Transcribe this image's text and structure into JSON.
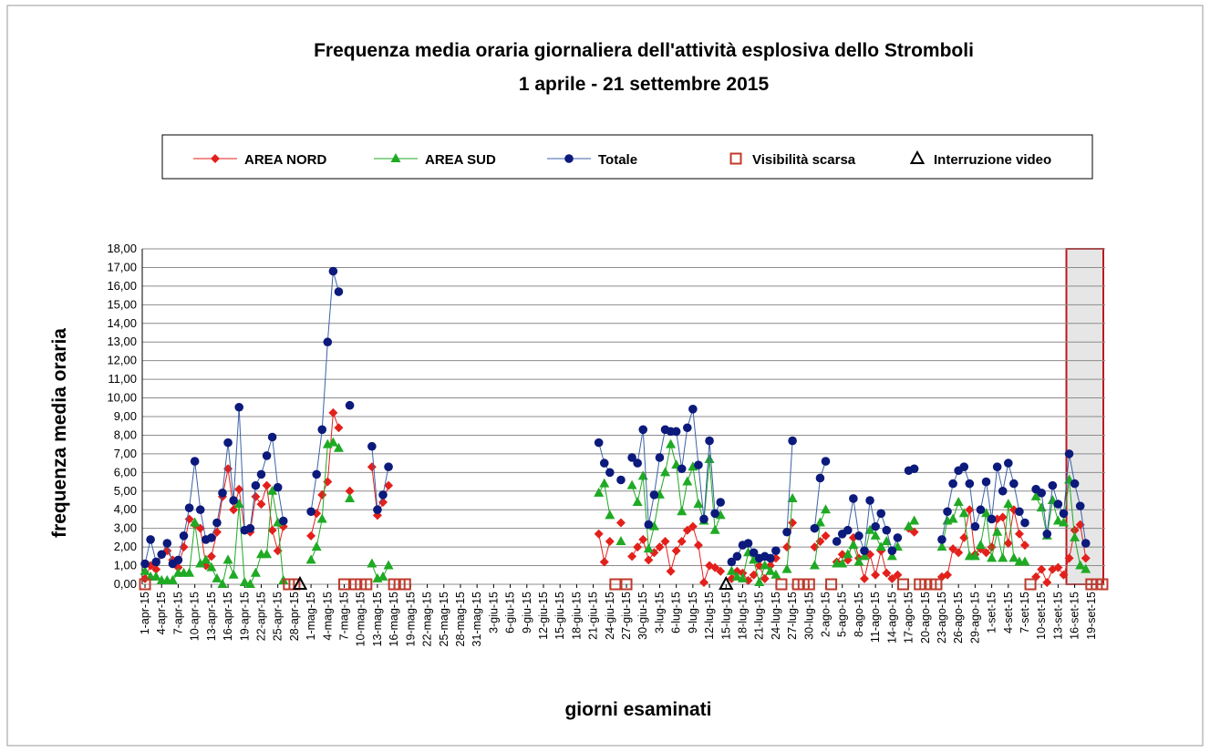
{
  "chart_data": {
    "type": "line",
    "title": "Frequenza media oraria giornaliera dell'attività esplosiva dello Stromboli",
    "subtitle": "1 aprile - 21 settembre 2015",
    "x_label": "giorni esaminati",
    "y_label": "frequenza media oraria",
    "ylim": [
      0,
      18
    ],
    "yticks": [
      {
        "value": 0,
        "label": "0,00"
      },
      {
        "value": 1,
        "label": "1,00"
      },
      {
        "value": 2,
        "label": "2,00"
      },
      {
        "value": 3,
        "label": "3,00"
      },
      {
        "value": 4,
        "label": "4,00"
      },
      {
        "value": 5,
        "label": "5,00"
      },
      {
        "value": 6,
        "label": "6,00"
      },
      {
        "value": 7,
        "label": "7,00"
      },
      {
        "value": 8,
        "label": "8,00"
      },
      {
        "value": 9,
        "label": "9,00"
      },
      {
        "value": 10,
        "label": "10,00"
      },
      {
        "value": 11,
        "label": "11,00"
      },
      {
        "value": 12,
        "label": "12,00"
      },
      {
        "value": 13,
        "label": "13,00"
      },
      {
        "value": 14,
        "label": "14,00"
      },
      {
        "value": 15,
        "label": "15,00"
      },
      {
        "value": 16,
        "label": "16,00"
      },
      {
        "value": 17,
        "label": "17,00"
      },
      {
        "value": 18,
        "label": "18,00"
      }
    ],
    "grid": true,
    "legend": "top",
    "categories": [
      "1-apr-15",
      null,
      null,
      "4-apr-15",
      null,
      null,
      "7-apr-15",
      null,
      null,
      "10-apr-15",
      null,
      null,
      "13-apr-15",
      null,
      null,
      "16-apr-15",
      null,
      null,
      "19-apr-15",
      null,
      null,
      "22-apr-15",
      null,
      null,
      "25-apr-15",
      null,
      null,
      "28-apr-15",
      null,
      null,
      "1-mag-15",
      null,
      null,
      "4-mag-15",
      null,
      null,
      "7-mag-15",
      null,
      null,
      "10-mag-15",
      null,
      null,
      "13-mag-15",
      null,
      null,
      "16-mag-15",
      null,
      null,
      "19-mag-15",
      null,
      null,
      "22-mag-15",
      null,
      null,
      "25-mag-15",
      null,
      null,
      "28-mag-15",
      null,
      null,
      "31-mag-15",
      null,
      null,
      "3-giu-15",
      null,
      null,
      "6-giu-15",
      null,
      null,
      "9-giu-15",
      null,
      null,
      "12-giu-15",
      null,
      null,
      "15-giu-15",
      null,
      null,
      "18-giu-15",
      null,
      null,
      "21-giu-15",
      null,
      null,
      "24-giu-15",
      null,
      null,
      "27-giu-15",
      null,
      null,
      "30-giu-15",
      null,
      null,
      "3-lug-15",
      null,
      null,
      "6-lug-15",
      null,
      null,
      "9-lug-15",
      null,
      null,
      "12-lug-15",
      null,
      null,
      "15-lug-15",
      null,
      null,
      "18-lug-15",
      null,
      null,
      "21-lug-15",
      null,
      null,
      "24-lug-15",
      null,
      null,
      "27-lug-15",
      null,
      null,
      "30-lug-15",
      null,
      null,
      "2-ago-15",
      null,
      null,
      "5-ago-15",
      null,
      null,
      "8-ago-15",
      null,
      null,
      "11-ago-15",
      null,
      null,
      "14-ago-15",
      null,
      null,
      "17-ago-15",
      null,
      null,
      "20-ago-15",
      null,
      null,
      "23-ago-15",
      null,
      null,
      "26-ago-15",
      null,
      null,
      "29-ago-15",
      null,
      null,
      "1-set-15",
      null,
      null,
      "4-set-15",
      null,
      null,
      "7-set-15",
      null,
      null,
      "10-set-15",
      null,
      null,
      "13-set-15",
      null,
      null,
      "16-set-15",
      null,
      null,
      "19-set-15",
      null,
      null
    ],
    "series": [
      {
        "name": "AREA NORD",
        "color": "#e3201b",
        "line_color": "#e3201b",
        "marker": "diamond",
        "values": [
          0.3,
          1.0,
          0.8,
          1.6,
          1.8,
          1.3,
          0.9,
          2.0,
          3.5,
          3.2,
          3.0,
          1.0,
          1.5,
          2.8,
          4.7,
          6.2,
          4.0,
          5.1,
          2.9,
          2.8,
          4.7,
          4.3,
          5.3,
          2.9,
          1.8,
          3.1,
          null,
          null,
          null,
          null,
          2.6,
          3.8,
          4.8,
          5.5,
          9.2,
          8.4,
          null,
          5.0,
          null,
          null,
          null,
          6.3,
          3.7,
          4.4,
          5.3,
          null,
          null,
          null,
          null,
          null,
          null,
          null,
          null,
          null,
          null,
          null,
          null,
          null,
          null,
          null,
          null,
          null,
          null,
          null,
          null,
          null,
          null,
          null,
          null,
          null,
          null,
          null,
          null,
          null,
          null,
          null,
          null,
          null,
          null,
          null,
          null,
          null,
          2.7,
          1.2,
          2.3,
          null,
          3.3,
          null,
          1.5,
          2.0,
          2.4,
          1.3,
          1.7,
          2.0,
          2.3,
          0.7,
          1.8,
          2.3,
          2.9,
          3.1,
          2.1,
          0.1,
          1.0,
          0.9,
          0.7,
          null,
          0.3,
          0.7,
          0.6,
          0.2,
          0.5,
          1.0,
          0.3,
          1.0,
          1.4,
          null,
          2.0,
          3.3,
          null,
          null,
          null,
          2.0,
          2.3,
          2.6,
          null,
          1.2,
          1.6,
          1.3,
          2.5,
          1.4,
          0.3,
          1.6,
          0.5,
          1.8,
          0.6,
          0.3,
          0.5,
          null,
          3.0,
          2.8,
          null,
          null,
          null,
          null,
          0.4,
          0.5,
          1.9,
          1.7,
          2.5,
          4.0,
          1.6,
          1.9,
          1.7,
          2.0,
          3.5,
          3.6,
          2.2,
          4.0,
          2.7,
          2.1,
          null,
          0.4,
          0.8,
          0.1,
          0.8,
          0.9,
          0.5,
          1.4,
          2.9,
          3.2,
          1.4,
          null,
          null,
          null
        ]
      },
      {
        "name": "AREA SUD",
        "color": "#1faa24",
        "line_color": "#1faa24",
        "marker": "triangle",
        "values": [
          0.7,
          0.4,
          0.4,
          0.2,
          0.2,
          0.2,
          0.6,
          0.6,
          0.6,
          3.3,
          1.1,
          1.3,
          0.9,
          0.3,
          0.0,
          1.3,
          0.5,
          4.3,
          0.1,
          0.0,
          0.6,
          1.6,
          1.6,
          5.0,
          3.3,
          0.2,
          null,
          null,
          null,
          null,
          1.3,
          2.0,
          3.5,
          7.5,
          7.6,
          7.3,
          null,
          4.6,
          null,
          null,
          null,
          1.1,
          0.3,
          0.4,
          1.0,
          null,
          null,
          null,
          null,
          null,
          null,
          null,
          null,
          null,
          null,
          null,
          null,
          null,
          null,
          null,
          null,
          null,
          null,
          null,
          null,
          null,
          null,
          null,
          null,
          null,
          null,
          null,
          null,
          null,
          null,
          null,
          null,
          null,
          null,
          null,
          null,
          null,
          4.9,
          5.4,
          3.7,
          null,
          2.3,
          null,
          5.3,
          4.4,
          5.8,
          1.9,
          3.1,
          4.8,
          6.0,
          7.5,
          6.4,
          3.9,
          5.5,
          6.3,
          4.3,
          3.4,
          6.7,
          2.9,
          3.7,
          null,
          0.7,
          0.4,
          0.3,
          1.7,
          1.3,
          0.1,
          1.0,
          0.7,
          0.5,
          null,
          0.8,
          4.6,
          null,
          null,
          null,
          1.0,
          3.3,
          4.0,
          null,
          1.1,
          1.1,
          1.6,
          2.1,
          1.2,
          1.5,
          2.9,
          2.6,
          2.0,
          2.3,
          1.5,
          2.0,
          null,
          3.1,
          3.4,
          null,
          null,
          null,
          null,
          2.0,
          3.4,
          3.5,
          4.4,
          3.8,
          1.5,
          1.5,
          2.1,
          3.8,
          1.4,
          2.8,
          1.4,
          4.3,
          1.4,
          1.2,
          1.2,
          null,
          4.7,
          4.1,
          2.6,
          4.5,
          3.4,
          3.3,
          5.6,
          2.5,
          1.0,
          0.8,
          null,
          null,
          null
        ]
      },
      {
        "name": "Totale",
        "color": "#0c1a7c",
        "line_color": "#3d62a8",
        "marker": "circle",
        "values": [
          1.1,
          2.4,
          1.2,
          1.6,
          2.2,
          1.1,
          1.3,
          2.6,
          4.1,
          6.6,
          4.0,
          2.4,
          2.5,
          3.3,
          4.9,
          7.6,
          4.5,
          9.5,
          2.9,
          3.0,
          5.3,
          5.9,
          6.9,
          7.9,
          5.2,
          3.4,
          null,
          null,
          null,
          null,
          3.9,
          5.9,
          8.3,
          13.0,
          16.8,
          15.7,
          null,
          9.6,
          null,
          null,
          null,
          7.4,
          4.0,
          4.8,
          6.3,
          null,
          null,
          null,
          null,
          null,
          null,
          null,
          null,
          null,
          null,
          null,
          null,
          null,
          null,
          null,
          null,
          null,
          null,
          null,
          null,
          null,
          null,
          null,
          null,
          null,
          null,
          null,
          null,
          null,
          null,
          null,
          null,
          null,
          null,
          null,
          null,
          null,
          7.6,
          6.5,
          6.0,
          null,
          5.6,
          null,
          6.8,
          6.5,
          8.3,
          3.2,
          4.8,
          6.8,
          8.3,
          8.2,
          8.2,
          6.2,
          8.4,
          9.4,
          6.4,
          3.5,
          7.7,
          3.8,
          4.4,
          null,
          1.2,
          1.5,
          2.1,
          2.2,
          1.7,
          1.4,
          1.5,
          1.4,
          1.8,
          null,
          2.8,
          7.7,
          null,
          null,
          null,
          3.0,
          5.7,
          6.6,
          null,
          2.3,
          2.7,
          2.9,
          4.6,
          2.6,
          1.8,
          4.5,
          3.1,
          3.8,
          2.9,
          1.8,
          2.5,
          null,
          6.1,
          6.2,
          null,
          null,
          null,
          null,
          2.4,
          3.9,
          5.4,
          6.1,
          6.3,
          5.4,
          3.1,
          4.0,
          5.5,
          3.5,
          6.3,
          5.0,
          6.5,
          5.4,
          3.9,
          3.3,
          null,
          5.1,
          4.9,
          2.7,
          5.3,
          4.3,
          3.8,
          7.0,
          5.4,
          4.2,
          2.2,
          null,
          null,
          null
        ]
      },
      {
        "name": "Visibilità scarsa",
        "color": "#c0392b",
        "marker": "square",
        "values": [
          0,
          null,
          null,
          null,
          null,
          null,
          null,
          null,
          null,
          null,
          null,
          null,
          null,
          null,
          null,
          null,
          null,
          null,
          null,
          null,
          null,
          null,
          null,
          null,
          null,
          null,
          0,
          0,
          null,
          null,
          null,
          null,
          null,
          null,
          null,
          null,
          0,
          null,
          0,
          0,
          0,
          null,
          null,
          null,
          null,
          0,
          0,
          0,
          null,
          null,
          null,
          null,
          null,
          null,
          null,
          null,
          null,
          null,
          null,
          null,
          null,
          null,
          null,
          null,
          null,
          null,
          null,
          null,
          null,
          null,
          null,
          null,
          null,
          null,
          null,
          null,
          null,
          null,
          null,
          null,
          null,
          null,
          null,
          null,
          null,
          0,
          null,
          0,
          null,
          null,
          null,
          null,
          null,
          null,
          null,
          null,
          null,
          null,
          null,
          null,
          null,
          null,
          null,
          null,
          null,
          null,
          null,
          null,
          null,
          null,
          null,
          null,
          null,
          null,
          null,
          0,
          null,
          null,
          0,
          0,
          0,
          null,
          null,
          null,
          0,
          null,
          null,
          null,
          null,
          null,
          null,
          null,
          null,
          null,
          null,
          null,
          null,
          0,
          null,
          null,
          0,
          0,
          0,
          0,
          null,
          null,
          null,
          null,
          null,
          null,
          null,
          null,
          null,
          null,
          null,
          null,
          null,
          null,
          null,
          null,
          0,
          null,
          null,
          null,
          null,
          null,
          null,
          null,
          null,
          null,
          null,
          0,
          0,
          0
        ]
      },
      {
        "name": "Interruzione video",
        "color": "#000000",
        "marker": "open-triangle",
        "values": [
          null,
          null,
          null,
          null,
          null,
          null,
          null,
          null,
          null,
          null,
          null,
          null,
          null,
          null,
          null,
          null,
          null,
          null,
          null,
          null,
          null,
          null,
          null,
          null,
          null,
          null,
          null,
          null,
          0,
          null,
          null,
          null,
          null,
          null,
          null,
          null,
          null,
          null,
          null,
          null,
          null,
          null,
          null,
          null,
          null,
          null,
          null,
          null,
          null,
          null,
          null,
          null,
          null,
          null,
          null,
          null,
          null,
          null,
          null,
          null,
          null,
          null,
          null,
          null,
          null,
          null,
          null,
          null,
          null,
          null,
          null,
          null,
          null,
          null,
          null,
          null,
          null,
          null,
          null,
          null,
          null,
          null,
          null,
          null,
          null,
          null,
          null,
          null,
          null,
          null,
          null,
          null,
          null,
          null,
          null,
          null,
          null,
          null,
          null,
          null,
          null,
          null,
          null,
          null,
          null,
          0,
          null,
          null,
          null,
          null,
          null,
          null,
          null,
          null,
          null,
          null,
          null,
          null,
          null,
          null,
          null,
          null,
          null,
          null,
          null,
          null,
          null,
          null,
          null,
          null,
          null,
          null,
          null,
          null,
          null,
          null,
          null,
          null,
          null,
          null,
          null,
          null,
          null,
          null,
          null,
          null,
          null,
          null,
          null,
          null,
          null,
          null,
          null,
          null,
          null,
          null,
          null,
          null,
          null,
          null,
          null,
          null,
          null,
          null,
          null,
          null,
          null,
          null,
          null,
          null,
          null,
          null,
          null,
          null
        ]
      }
    ]
  }
}
